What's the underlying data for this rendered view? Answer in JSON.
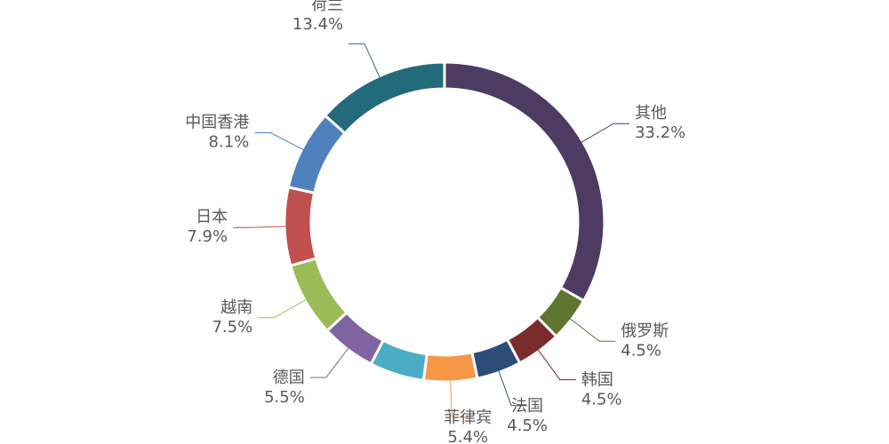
{
  "chart_data": {
    "type": "pie",
    "donut": true,
    "categories": [
      "其他",
      "俄罗斯",
      "韩国",
      "法国",
      "菲律宾",
      null,
      "德国",
      "越南",
      "日本",
      "中国香港",
      "荷兰"
    ],
    "values": [
      33.2,
      4.5,
      4.5,
      4.5,
      5.4,
      5.5,
      5.5,
      7.5,
      7.9,
      8.1,
      13.4
    ],
    "value_labels": [
      "33.2%",
      "4.5%",
      "4.5%",
      "4.5%",
      "5.4%",
      null,
      "5.5%",
      "7.5%",
      "7.9%",
      "8.1%",
      "13.4%"
    ],
    "colors": [
      "#4d3b63",
      "#5f7530",
      "#7a2b2b",
      "#2c4d78",
      "#f79646",
      "#4bacc6",
      "#8064a2",
      "#9bbb59",
      "#c0504d",
      "#4f81bd",
      "#236b7a"
    ]
  }
}
